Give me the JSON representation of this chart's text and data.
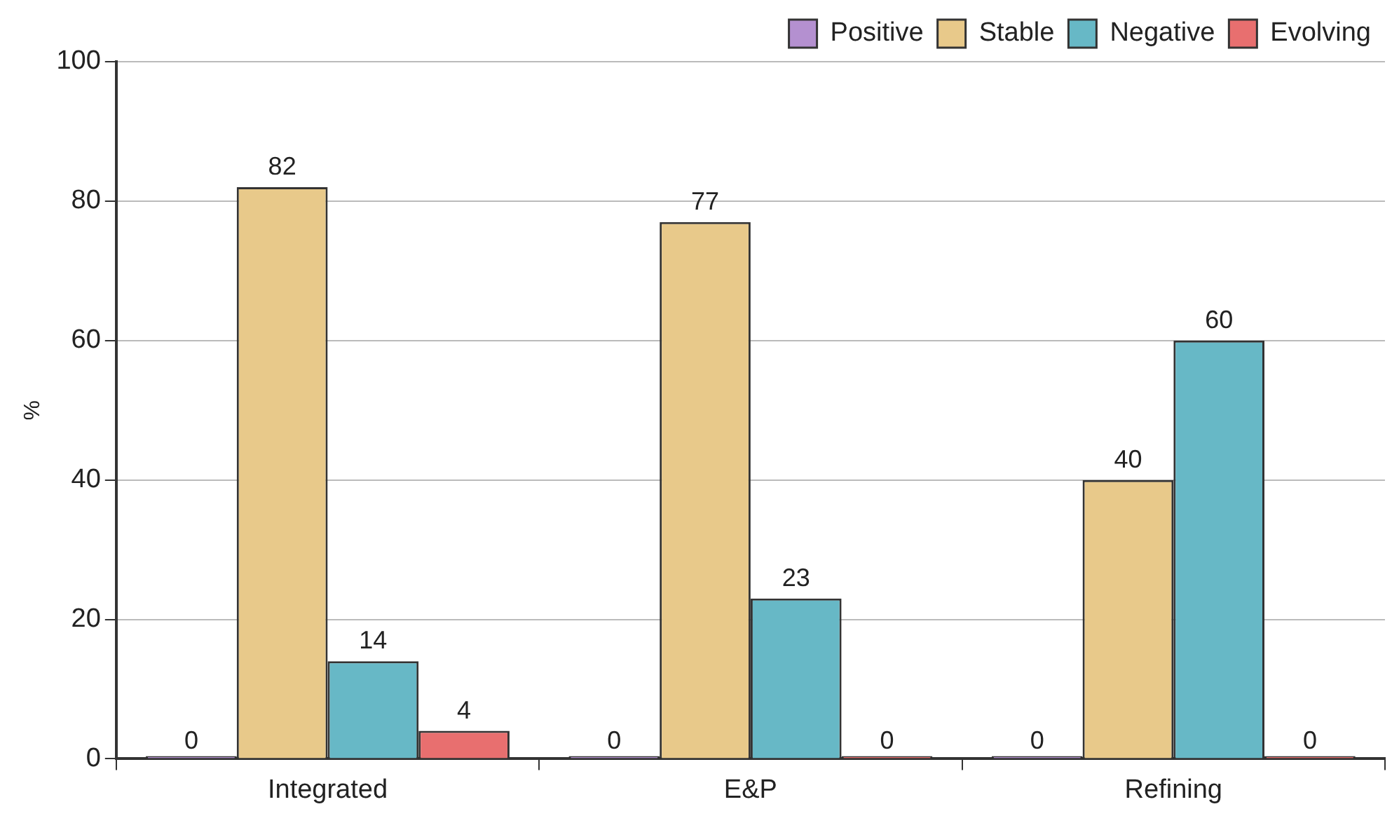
{
  "chart_data": {
    "type": "bar",
    "ylabel": "%",
    "categories": [
      "Integrated",
      "E&P",
      "Refining"
    ],
    "series": [
      {
        "name": "Positive",
        "color": "#b490d0",
        "values": [
          0,
          0,
          0
        ]
      },
      {
        "name": "Stable",
        "color": "#e8c98a",
        "values": [
          82,
          77,
          40
        ]
      },
      {
        "name": "Negative",
        "color": "#67b8c6",
        "values": [
          14,
          23,
          60
        ]
      },
      {
        "name": "Evolving",
        "color": "#e86f6f",
        "values": [
          4,
          0,
          0
        ]
      }
    ],
    "ylim": [
      0,
      100
    ],
    "yticks": [
      0,
      20,
      40,
      60,
      80,
      100
    ],
    "grid": "y",
    "legend": "top right",
    "data_labels": true
  }
}
